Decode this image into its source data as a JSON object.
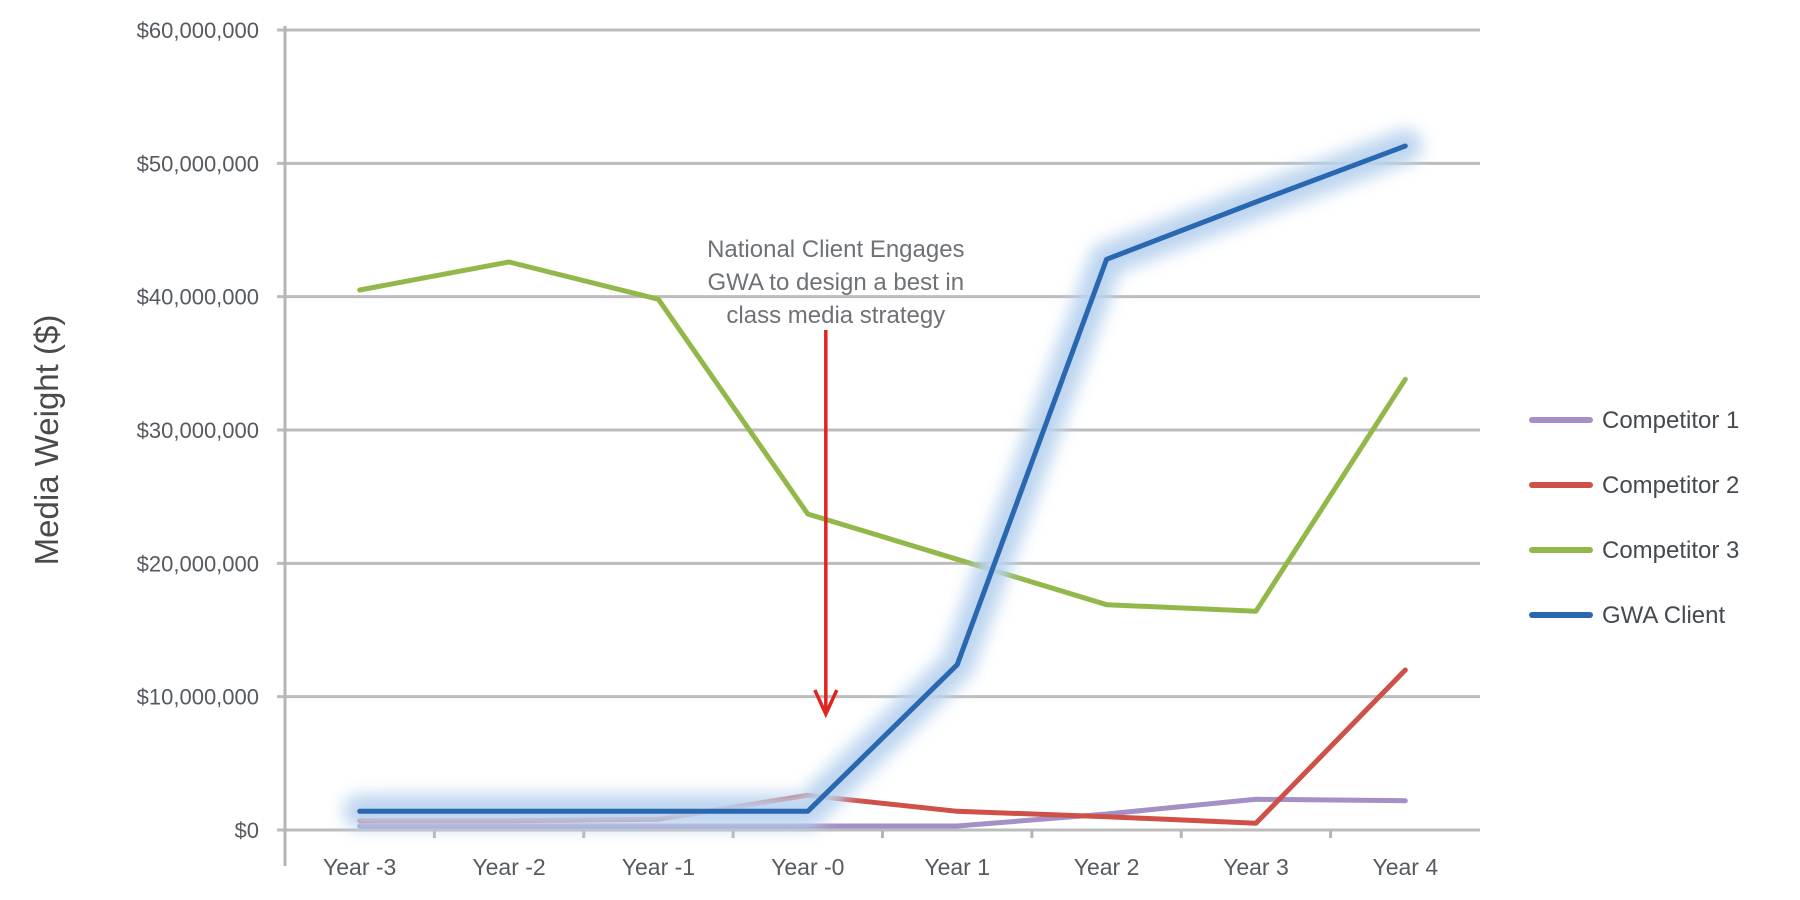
{
  "chart_data": {
    "type": "line",
    "title": "",
    "xlabel": "",
    "ylabel": "Media Weight ($)",
    "categories": [
      "Year -3",
      "Year -2",
      "Year -1",
      "Year -0",
      "Year 1",
      "Year 2",
      "Year 3",
      "Year 4"
    ],
    "y_ticks": [
      "$0",
      "$10,000,000",
      "$20,000,000",
      "$30,000,000",
      "$40,000,000",
      "$50,000,000",
      "$60,000,000"
    ],
    "ylim": [
      0,
      60000000
    ],
    "grid": true,
    "legend_position": "right",
    "series": [
      {
        "name": "Competitor 1",
        "color": "#a48fc6",
        "values": [
          300000,
          300000,
          300000,
          300000,
          300000,
          1200000,
          2300000,
          2200000
        ]
      },
      {
        "name": "Competitor 2",
        "color": "#cf5048",
        "values": [
          700000,
          700000,
          800000,
          2600000,
          1400000,
          1000000,
          500000,
          12000000
        ]
      },
      {
        "name": "Competitor 3",
        "color": "#93b84a",
        "values": [
          40500000,
          42600000,
          39800000,
          23700000,
          20300000,
          16900000,
          16400000,
          33800000
        ]
      },
      {
        "name": "GWA Client",
        "color": "#2a67b1",
        "glow": "#b9d3ef",
        "values": [
          1400000,
          1400000,
          1400000,
          1400000,
          12400000,
          42800000,
          47100000,
          51300000
        ]
      }
    ],
    "annotation": {
      "lines": [
        "National Client Engages",
        "GWA to design a best in",
        "class media strategy"
      ],
      "arrow_color": "#e0241f",
      "arrow_category": "Year -0",
      "arrow_top_value": 37500000,
      "arrow_bottom_value": 8700000
    },
    "axis_color": "#b5b5b5",
    "grid_color": "#bcbcbc"
  }
}
